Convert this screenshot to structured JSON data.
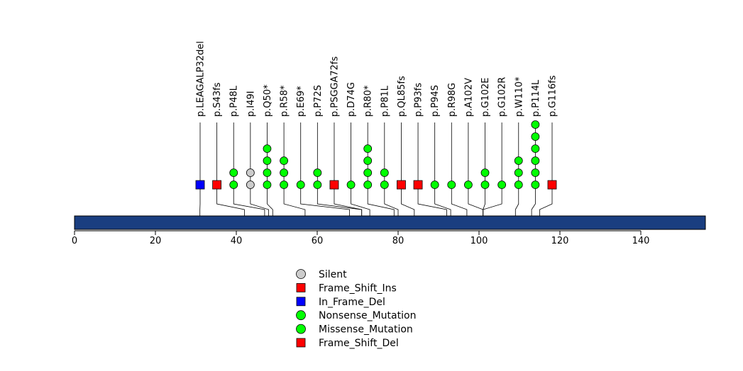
{
  "chart_data": {
    "type": "lollipop",
    "protein_length": 156,
    "x_ticks": [
      0,
      20,
      40,
      60,
      80,
      100,
      120,
      140
    ],
    "xlim": [
      0,
      156
    ],
    "domain_color": "#1a3e80",
    "mutations": [
      {
        "label": "p.LEAGALP32del",
        "position": 31,
        "count": 1,
        "stack": [
          "In_Frame_Del"
        ]
      },
      {
        "label": "p.S43fs",
        "position": 42,
        "count": 1,
        "stack": [
          "Frame_Shift_Del"
        ]
      },
      {
        "label": "p.P48L",
        "position": 47,
        "count": 2,
        "stack": [
          "Missense_Mutation",
          "Missense_Mutation"
        ]
      },
      {
        "label": "p.I49I",
        "position": 48,
        "count": 2,
        "stack": [
          "Silent",
          "Silent"
        ]
      },
      {
        "label": "p.Q50*",
        "position": 49,
        "count": 4,
        "stack": [
          "Nonsense_Mutation",
          "Nonsense_Mutation",
          "Nonsense_Mutation",
          "Nonsense_Mutation"
        ]
      },
      {
        "label": "p.R58*",
        "position": 57,
        "count": 3,
        "stack": [
          "Nonsense_Mutation",
          "Nonsense_Mutation",
          "Nonsense_Mutation"
        ]
      },
      {
        "label": "p.E69*",
        "position": 68,
        "count": 1,
        "stack": [
          "Nonsense_Mutation"
        ]
      },
      {
        "label": "p.P72S",
        "position": 71,
        "count": 2,
        "stack": [
          "Missense_Mutation",
          "Missense_Mutation"
        ]
      },
      {
        "label": "p.PSGGA72fs",
        "position": 71,
        "count": 1,
        "stack": [
          "Frame_Shift_Del"
        ]
      },
      {
        "label": "p.D74G",
        "position": 73,
        "count": 1,
        "stack": [
          "Missense_Mutation"
        ]
      },
      {
        "label": "p.R80*",
        "position": 79,
        "count": 4,
        "stack": [
          "Nonsense_Mutation",
          "Nonsense_Mutation",
          "Nonsense_Mutation",
          "Nonsense_Mutation"
        ]
      },
      {
        "label": "p.P81L",
        "position": 80,
        "count": 2,
        "stack": [
          "Missense_Mutation",
          "Missense_Mutation"
        ]
      },
      {
        "label": "p.QL85fs",
        "position": 84,
        "count": 1,
        "stack": [
          "Frame_Shift_Del"
        ]
      },
      {
        "label": "p.P93fs",
        "position": 92,
        "count": 1,
        "stack": [
          "Frame_Shift_Del"
        ]
      },
      {
        "label": "p.P94S",
        "position": 93,
        "count": 1,
        "stack": [
          "Missense_Mutation"
        ]
      },
      {
        "label": "p.R98G",
        "position": 97,
        "count": 1,
        "stack": [
          "Missense_Mutation"
        ]
      },
      {
        "label": "p.A102V",
        "position": 101,
        "count": 1,
        "stack": [
          "Missense_Mutation"
        ]
      },
      {
        "label": "p.G102E",
        "position": 101,
        "count": 2,
        "stack": [
          "Missense_Mutation",
          "Missense_Mutation"
        ]
      },
      {
        "label": "p.G102R",
        "position": 101,
        "count": 1,
        "stack": [
          "Missense_Mutation"
        ]
      },
      {
        "label": "p.W110*",
        "position": 109,
        "count": 3,
        "stack": [
          "Nonsense_Mutation",
          "Nonsense_Mutation",
          "Nonsense_Mutation"
        ]
      },
      {
        "label": "p.P114L",
        "position": 113,
        "count": 6,
        "stack": [
          "Missense_Mutation",
          "Missense_Mutation",
          "Missense_Mutation",
          "Missense_Mutation",
          "Missense_Mutation",
          "Missense_Mutation"
        ]
      },
      {
        "label": "p.G116fs",
        "position": 115,
        "count": 1,
        "stack": [
          "Frame_Shift_Ins"
        ]
      }
    ],
    "legend": [
      {
        "label": "Silent",
        "shape": "circle",
        "color": "#cccccc"
      },
      {
        "label": "Frame_Shift_Ins",
        "shape": "square",
        "color": "#ff0000"
      },
      {
        "label": "In_Frame_Del",
        "shape": "square",
        "color": "#0000ff"
      },
      {
        "label": "Nonsense_Mutation",
        "shape": "circle",
        "color": "#00ff00"
      },
      {
        "label": "Missense_Mutation",
        "shape": "circle",
        "color": "#00ff00"
      },
      {
        "label": "Frame_Shift_Del",
        "shape": "square",
        "color": "#ff0000"
      }
    ],
    "type_styles": {
      "Silent": {
        "shape": "circle",
        "color": "#cccccc"
      },
      "Frame_Shift_Ins": {
        "shape": "square",
        "color": "#ff0000"
      },
      "In_Frame_Del": {
        "shape": "square",
        "color": "#0000ff"
      },
      "Nonsense_Mutation": {
        "shape": "circle",
        "color": "#00ff00"
      },
      "Missense_Mutation": {
        "shape": "circle",
        "color": "#00ff00"
      },
      "Frame_Shift_Del": {
        "shape": "square",
        "color": "#ff0000"
      }
    }
  }
}
